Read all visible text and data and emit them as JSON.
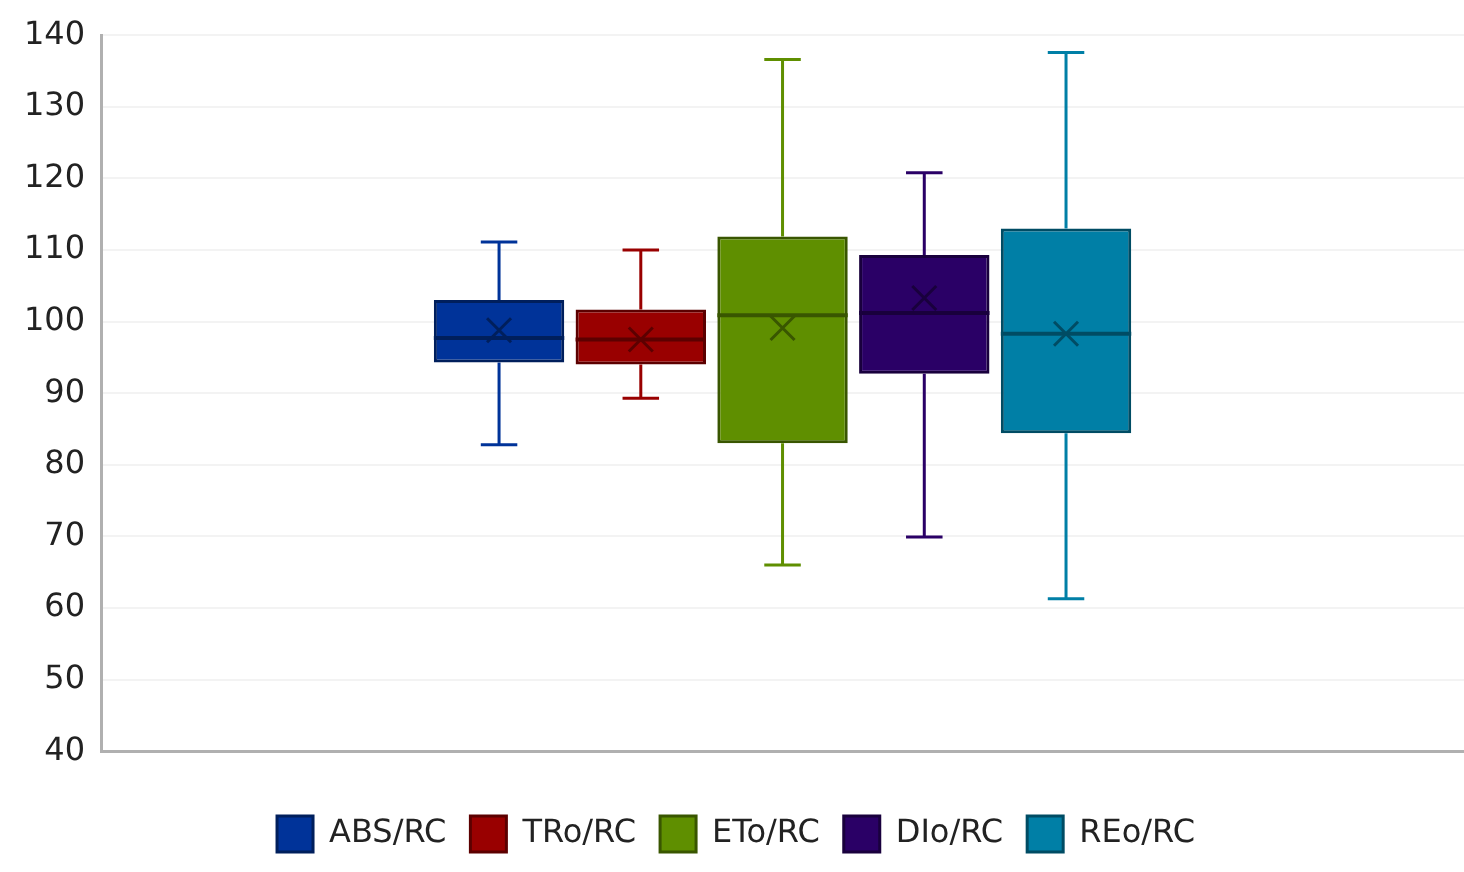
{
  "chart_data": {
    "type": "box",
    "categories": [
      null
    ],
    "series": [
      {
        "name": "ABS/RC",
        "color": "#003399",
        "boxes": [
          {
            "low": 82.8,
            "q1": 94.3,
            "median": 97.7,
            "q3": 103,
            "high": 111.1,
            "mean": 98.8
          }
        ]
      },
      {
        "name": "TRo/RC",
        "color": "#990000",
        "boxes": [
          {
            "low": 89.3,
            "q1": 94,
            "median": 97.5,
            "q3": 101.7,
            "high": 110,
            "mean": 97.5
          }
        ]
      },
      {
        "name": "ETo/RC",
        "color": "#5f8f00",
        "boxes": [
          {
            "low": 66,
            "q1": 83,
            "median": 100.9,
            "q3": 111.9,
            "high": 136.6,
            "mean": 99.1
          }
        ]
      },
      {
        "name": "DIo/RC",
        "color": "#2a0066",
        "boxes": [
          {
            "low": 69.9,
            "q1": 92.7,
            "median": 101.2,
            "q3": 109.3,
            "high": 120.8,
            "mean": 103.3
          }
        ]
      },
      {
        "name": "REo/RC",
        "color": "#007fa6",
        "boxes": [
          {
            "low": 61.3,
            "q1": 84.4,
            "median": 98.3,
            "q3": 113,
            "high": 137.6,
            "mean": 98.3
          }
        ]
      }
    ],
    "ylim": [
      40,
      140
    ],
    "yticks": [
      40,
      50,
      60,
      70,
      80,
      90,
      100,
      110,
      120,
      130,
      140
    ],
    "grid": "y",
    "legend": "bottom"
  }
}
